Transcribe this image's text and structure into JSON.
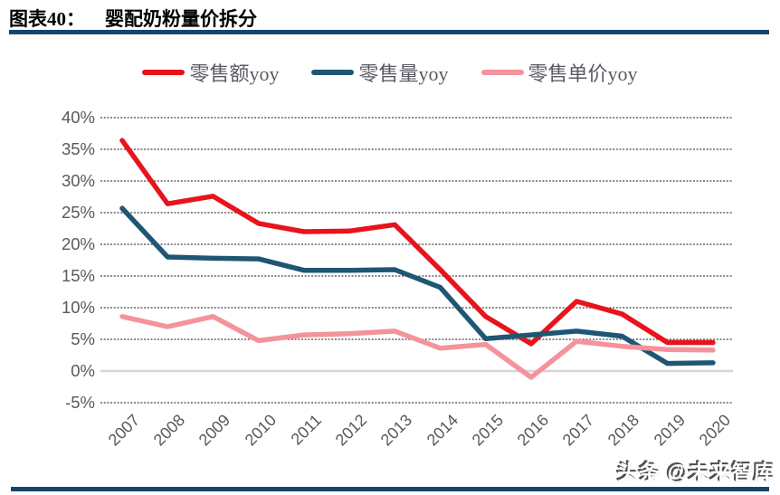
{
  "figure": {
    "label": "图表40：",
    "title": "婴配奶粉量价拆分"
  },
  "watermark": {
    "text": "头条 @未来智库"
  },
  "colors": {
    "rule": "#15456f",
    "axis_text": "#595959",
    "gridline": "#404040",
    "zero_line": "#d6d6d6",
    "series_red": "#e8131b",
    "series_blue": "#1f5674",
    "series_pink": "#f4939b"
  },
  "chart_data": {
    "type": "line",
    "title": "婴配奶粉量价拆分",
    "xlabel": "",
    "ylabel": "",
    "legend_position": "top",
    "grid": "horizontal-dashed",
    "categories": [
      "2007",
      "2008",
      "2009",
      "2010",
      "2011",
      "2012",
      "2013",
      "2014",
      "2015",
      "2016",
      "2017",
      "2018",
      "2019",
      "2020"
    ],
    "series": [
      {
        "name": "零售额yoy",
        "color": "#e8131b",
        "values": [
          36.4,
          26.4,
          27.6,
          23.3,
          22.0,
          22.1,
          23.1,
          16.0,
          8.6,
          4.3,
          11.0,
          9.0,
          4.5,
          4.5
        ]
      },
      {
        "name": "零售量yoy",
        "color": "#1f5674",
        "values": [
          25.7,
          18.0,
          17.8,
          17.7,
          15.9,
          15.9,
          16.0,
          13.2,
          5.1,
          5.7,
          6.3,
          5.5,
          1.2,
          1.3
        ]
      },
      {
        "name": "零售单价yoy",
        "color": "#f4939b",
        "values": [
          8.6,
          7.0,
          8.6,
          4.8,
          5.7,
          5.9,
          6.3,
          3.6,
          4.2,
          -1.0,
          4.7,
          3.9,
          3.4,
          3.3
        ]
      }
    ],
    "ylim": [
      -5,
      40
    ],
    "y_tick_values": [
      40,
      35,
      30,
      25,
      20,
      15,
      10,
      5,
      0,
      -5
    ],
    "y_tick_labels": [
      "40%",
      "35%",
      "30%",
      "25%",
      "20%",
      "15%",
      "10%",
      "5%",
      "0%",
      "-5%"
    ]
  }
}
